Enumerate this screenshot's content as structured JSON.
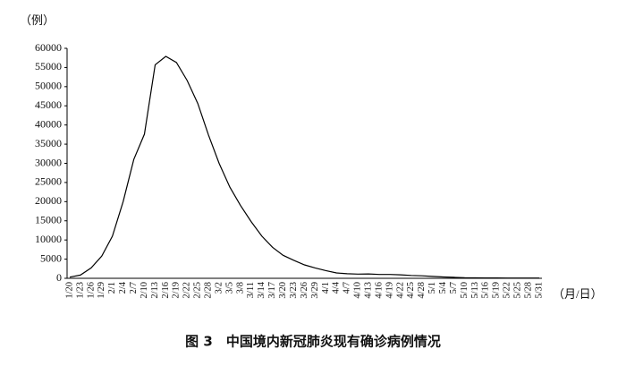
{
  "chart_data": {
    "type": "line",
    "y_unit": "（例）",
    "x_unit": "（月/日）",
    "caption": "图 3　中国境内新冠肺炎现有确诊病例情况",
    "categories": [
      "1/20",
      "1/23",
      "1/26",
      "1/29",
      "2/1",
      "2/4",
      "2/7",
      "2/10",
      "2/13",
      "2/16",
      "2/19",
      "2/22",
      "2/25",
      "2/28",
      "3/2",
      "3/5",
      "3/8",
      "3/11",
      "3/14",
      "3/17",
      "3/20",
      "3/23",
      "3/26",
      "3/29",
      "4/1",
      "4/4",
      "4/7",
      "4/10",
      "4/13",
      "4/16",
      "4/19",
      "4/22",
      "4/25",
      "4/28",
      "5/1",
      "5/4",
      "5/7",
      "5/10",
      "5/13",
      "5/16",
      "5/19",
      "5/22",
      "5/25",
      "5/28",
      "5/31"
    ],
    "values": [
      300,
      830,
      2700,
      5800,
      11000,
      20000,
      31000,
      37600,
      55700,
      57900,
      56300,
      51600,
      45600,
      37400,
      30000,
      23800,
      19000,
      14800,
      11000,
      8100,
      6000,
      4700,
      3500,
      2700,
      2000,
      1400,
      1200,
      1100,
      1150,
      1000,
      1000,
      900,
      750,
      650,
      500,
      350,
      250,
      150,
      110,
      90,
      85,
      80,
      60,
      60,
      65
    ],
    "color": "#000000",
    "ylim": [
      0,
      60000
    ],
    "yticks": [
      0,
      5000,
      10000,
      15000,
      20000,
      25000,
      30000,
      35000,
      40000,
      45000,
      50000,
      55000,
      60000
    ]
  }
}
